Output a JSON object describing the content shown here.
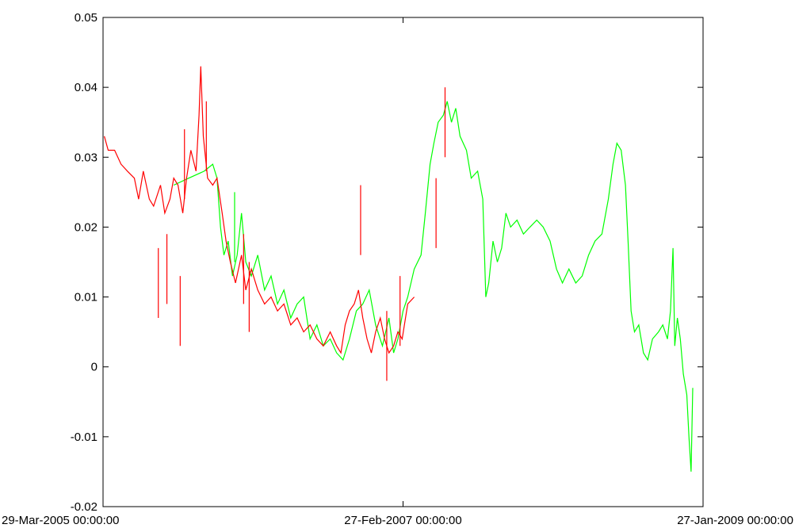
{
  "chart_data": {
    "type": "line",
    "title": "",
    "xlabel": "",
    "ylabel": "",
    "x_axis": {
      "kind": "date",
      "range": [
        "2005-03-29",
        "2009-01-27"
      ],
      "ticks": [
        {
          "value": "2005-03-29",
          "label": "29-Mar-2005 00:00:00"
        },
        {
          "value": "2007-02-27",
          "label": "27-Feb-2007 00:00:00"
        },
        {
          "value": "2009-01-27",
          "label": "27-Jan-2009 00:00:00"
        }
      ]
    },
    "y_axis": {
      "range": [
        -0.02,
        0.05
      ],
      "ticks": [
        {
          "value": -0.02,
          "label": "-0.02"
        },
        {
          "value": -0.01,
          "label": "-0.01"
        },
        {
          "value": 0,
          "label": "0"
        },
        {
          "value": 0.01,
          "label": "0.01"
        },
        {
          "value": 0.02,
          "label": "0.02"
        },
        {
          "value": 0.03,
          "label": "0.03"
        },
        {
          "value": 0.04,
          "label": "0.04"
        },
        {
          "value": 0.05,
          "label": "0.05"
        }
      ]
    },
    "grid": false,
    "legend": "none",
    "series": [
      {
        "color": "#00ff00",
        "points": [
          [
            "2005-09-10",
            0.026
          ],
          [
            "2005-10-15",
            0.027
          ],
          [
            "2005-11-20",
            0.028
          ],
          [
            "2005-12-10",
            0.029
          ],
          [
            "2005-12-20",
            0.027
          ],
          [
            "2005-12-28",
            0.02
          ],
          [
            "2006-01-05",
            0.016
          ],
          [
            "2006-01-15",
            0.018
          ],
          [
            "2006-01-25",
            0.013
          ],
          [
            "2006-02-05",
            0.016
          ],
          [
            "2006-02-15",
            0.022
          ],
          [
            "2006-02-25",
            0.015
          ],
          [
            "2006-03-10",
            0.013
          ],
          [
            "2006-03-25",
            0.016
          ],
          [
            "2006-04-10",
            0.011
          ],
          [
            "2006-04-25",
            0.013
          ],
          [
            "2006-05-10",
            0.009
          ],
          [
            "2006-05-25",
            0.011
          ],
          [
            "2006-06-10",
            0.007
          ],
          [
            "2006-06-25",
            0.009
          ],
          [
            "2006-07-10",
            0.01
          ],
          [
            "2006-07-25",
            0.004
          ],
          [
            "2006-08-10",
            0.006
          ],
          [
            "2006-08-25",
            0.003
          ],
          [
            "2006-09-10",
            0.004
          ],
          [
            "2006-09-25",
            0.002
          ],
          [
            "2006-10-10",
            0.001
          ],
          [
            "2006-10-25",
            0.004
          ],
          [
            "2006-11-10",
            0.008
          ],
          [
            "2006-11-25",
            0.009
          ],
          [
            "2006-12-10",
            0.011
          ],
          [
            "2006-12-25",
            0.006
          ],
          [
            "2007-01-10",
            0.003
          ],
          [
            "2007-01-25",
            0.007
          ],
          [
            "2007-02-05",
            0.002
          ],
          [
            "2007-02-15",
            0.004
          ],
          [
            "2007-02-27",
            0.008
          ],
          [
            "2007-03-10",
            0.01
          ],
          [
            "2007-03-25",
            0.014
          ],
          [
            "2007-04-10",
            0.016
          ],
          [
            "2007-04-20",
            0.022
          ],
          [
            "2007-05-01",
            0.029
          ],
          [
            "2007-05-10",
            0.032
          ],
          [
            "2007-05-20",
            0.035
          ],
          [
            "2007-06-01",
            0.036
          ],
          [
            "2007-06-10",
            0.038
          ],
          [
            "2007-06-20",
            0.035
          ],
          [
            "2007-06-30",
            0.037
          ],
          [
            "2007-07-10",
            0.033
          ],
          [
            "2007-07-25",
            0.031
          ],
          [
            "2007-08-05",
            0.027
          ],
          [
            "2007-08-20",
            0.028
          ],
          [
            "2007-09-01",
            0.024
          ],
          [
            "2007-09-08",
            0.01
          ],
          [
            "2007-09-15",
            0.012
          ],
          [
            "2007-09-25",
            0.018
          ],
          [
            "2007-10-05",
            0.015
          ],
          [
            "2007-10-15",
            0.017
          ],
          [
            "2007-10-25",
            0.022
          ],
          [
            "2007-11-05",
            0.02
          ],
          [
            "2007-11-20",
            0.021
          ],
          [
            "2007-12-05",
            0.019
          ],
          [
            "2007-12-20",
            0.02
          ],
          [
            "2008-01-05",
            0.021
          ],
          [
            "2008-01-20",
            0.02
          ],
          [
            "2008-02-05",
            0.018
          ],
          [
            "2008-02-20",
            0.014
          ],
          [
            "2008-03-05",
            0.012
          ],
          [
            "2008-03-20",
            0.014
          ],
          [
            "2008-04-05",
            0.012
          ],
          [
            "2008-04-20",
            0.013
          ],
          [
            "2008-05-05",
            0.016
          ],
          [
            "2008-05-20",
            0.018
          ],
          [
            "2008-06-05",
            0.019
          ],
          [
            "2008-06-20",
            0.024
          ],
          [
            "2008-07-01",
            0.029
          ],
          [
            "2008-07-10",
            0.032
          ],
          [
            "2008-07-20",
            0.031
          ],
          [
            "2008-07-30",
            0.026
          ],
          [
            "2008-08-05",
            0.018
          ],
          [
            "2008-08-12",
            0.008
          ],
          [
            "2008-08-20",
            0.005
          ],
          [
            "2008-08-30",
            0.006
          ],
          [
            "2008-09-10",
            0.002
          ],
          [
            "2008-09-20",
            0.001
          ],
          [
            "2008-10-01",
            0.004
          ],
          [
            "2008-10-15",
            0.005
          ],
          [
            "2008-10-25",
            0.006
          ],
          [
            "2008-11-05",
            0.004
          ],
          [
            "2008-11-12",
            0.008
          ],
          [
            "2008-11-18",
            0.017
          ],
          [
            "2008-11-22",
            0.003
          ],
          [
            "2008-11-28",
            0.007
          ],
          [
            "2008-12-05",
            0.004
          ],
          [
            "2008-12-12",
            -0.001
          ],
          [
            "2008-12-20",
            -0.004
          ],
          [
            "2008-12-25",
            -0.01
          ],
          [
            "2008-12-30",
            -0.015
          ],
          [
            "2009-01-03",
            -0.003
          ]
        ]
      },
      {
        "color": "#ff0000",
        "points": [
          [
            "2005-04-01",
            0.033
          ],
          [
            "2005-04-10",
            0.031
          ],
          [
            "2005-04-25",
            0.031
          ],
          [
            "2005-05-10",
            0.029
          ],
          [
            "2005-05-25",
            0.028
          ],
          [
            "2005-06-10",
            0.027
          ],
          [
            "2005-06-20",
            0.024
          ],
          [
            "2005-07-01",
            0.028
          ],
          [
            "2005-07-15",
            0.024
          ],
          [
            "2005-07-25",
            0.023
          ],
          [
            "2005-08-10",
            0.026
          ],
          [
            "2005-08-20",
            0.022
          ],
          [
            "2005-09-01",
            0.024
          ],
          [
            "2005-09-10",
            0.027
          ],
          [
            "2005-09-20",
            0.026
          ],
          [
            "2005-10-01",
            0.022
          ],
          [
            "2005-10-10",
            0.027
          ],
          [
            "2005-10-20",
            0.031
          ],
          [
            "2005-11-01",
            0.028
          ],
          [
            "2005-11-08",
            0.036
          ],
          [
            "2005-11-12",
            0.043
          ],
          [
            "2005-11-18",
            0.033
          ],
          [
            "2005-11-28",
            0.027
          ],
          [
            "2005-12-10",
            0.026
          ],
          [
            "2005-12-20",
            0.027
          ],
          [
            "2006-01-01",
            0.022
          ],
          [
            "2006-01-10",
            0.018
          ],
          [
            "2006-01-20",
            0.015
          ],
          [
            "2006-02-01",
            0.012
          ],
          [
            "2006-02-15",
            0.016
          ],
          [
            "2006-02-25",
            0.011
          ],
          [
            "2006-03-10",
            0.014
          ],
          [
            "2006-03-25",
            0.011
          ],
          [
            "2006-04-10",
            0.009
          ],
          [
            "2006-04-25",
            0.01
          ],
          [
            "2006-05-10",
            0.008
          ],
          [
            "2006-05-25",
            0.009
          ],
          [
            "2006-06-10",
            0.006
          ],
          [
            "2006-06-25",
            0.007
          ],
          [
            "2006-07-10",
            0.005
          ],
          [
            "2006-07-25",
            0.006
          ],
          [
            "2006-08-10",
            0.004
          ],
          [
            "2006-08-25",
            0.003
          ],
          [
            "2006-09-10",
            0.005
          ],
          [
            "2006-09-25",
            0.003
          ],
          [
            "2006-10-05",
            0.002
          ],
          [
            "2006-10-15",
            0.006
          ],
          [
            "2006-10-25",
            0.008
          ],
          [
            "2006-11-05",
            0.009
          ],
          [
            "2006-11-15",
            0.011
          ],
          [
            "2006-11-25",
            0.007
          ],
          [
            "2006-12-05",
            0.004
          ],
          [
            "2006-12-15",
            0.002
          ],
          [
            "2006-12-25",
            0.005
          ],
          [
            "2007-01-05",
            0.007
          ],
          [
            "2007-01-15",
            0.004
          ],
          [
            "2007-01-25",
            0.002
          ],
          [
            "2007-02-05",
            0.003
          ],
          [
            "2007-02-15",
            0.005
          ],
          [
            "2007-02-25",
            0.004
          ],
          [
            "2007-03-10",
            0.009
          ],
          [
            "2007-03-25",
            0.01
          ]
        ]
      }
    ],
    "annotations_on_curve": {
      "green_extra_spikes": [
        [
          "2006-01-30",
          0.025
        ]
      ],
      "red_extra_spikes": [
        [
          "2005-08-05",
          0.017
        ],
        [
          "2005-08-25",
          0.019
        ],
        [
          "2005-09-25",
          0.013
        ],
        [
          "2005-10-05",
          0.034
        ],
        [
          "2005-11-25",
          0.038
        ],
        [
          "2006-02-20",
          0.019
        ],
        [
          "2006-03-05",
          0.005
        ],
        [
          "2006-11-20",
          0.026
        ],
        [
          "2007-01-20",
          -0.002
        ],
        [
          "2007-02-20",
          0.013
        ],
        [
          "2007-06-05",
          0.04
        ],
        [
          "2007-05-15",
          0.027
        ]
      ]
    },
    "page": {
      "background": "#ffffff",
      "axis_color": "#000000"
    }
  }
}
